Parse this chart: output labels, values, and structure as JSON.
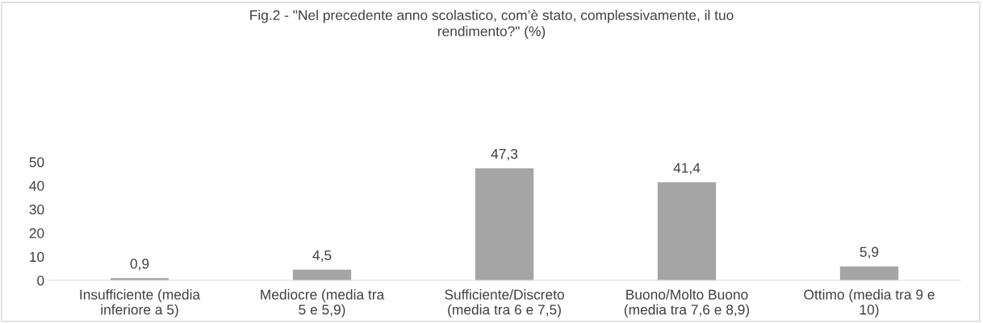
{
  "chart_data": {
    "type": "bar",
    "title": "Fig.2 - \"Nel precedente anno scolastico, com’è stato, complessivamente, il tuo\nrendimento?\" (%)",
    "categories": [
      "Insufficiente (media\ninferiore a 5)",
      "Mediocre (media tra\n5 e 5,9)",
      "Sufficiente/Discreto\n(media tra 6 e 7,5)",
      "Buono/Molto Buono\n(media tra 7,6 e 8,9)",
      "Ottimo (media tra 9 e\n10)"
    ],
    "values": [
      0.9,
      4.5,
      47.3,
      41.4,
      5.9
    ],
    "value_labels": [
      "0,9",
      "4,5",
      "47,3",
      "41,4",
      "5,9"
    ],
    "color": "#a5a5a5",
    "ylim": [
      0,
      50
    ],
    "yticks": [
      0,
      10,
      20,
      30,
      40,
      50
    ],
    "grid": false,
    "legend": false
  }
}
